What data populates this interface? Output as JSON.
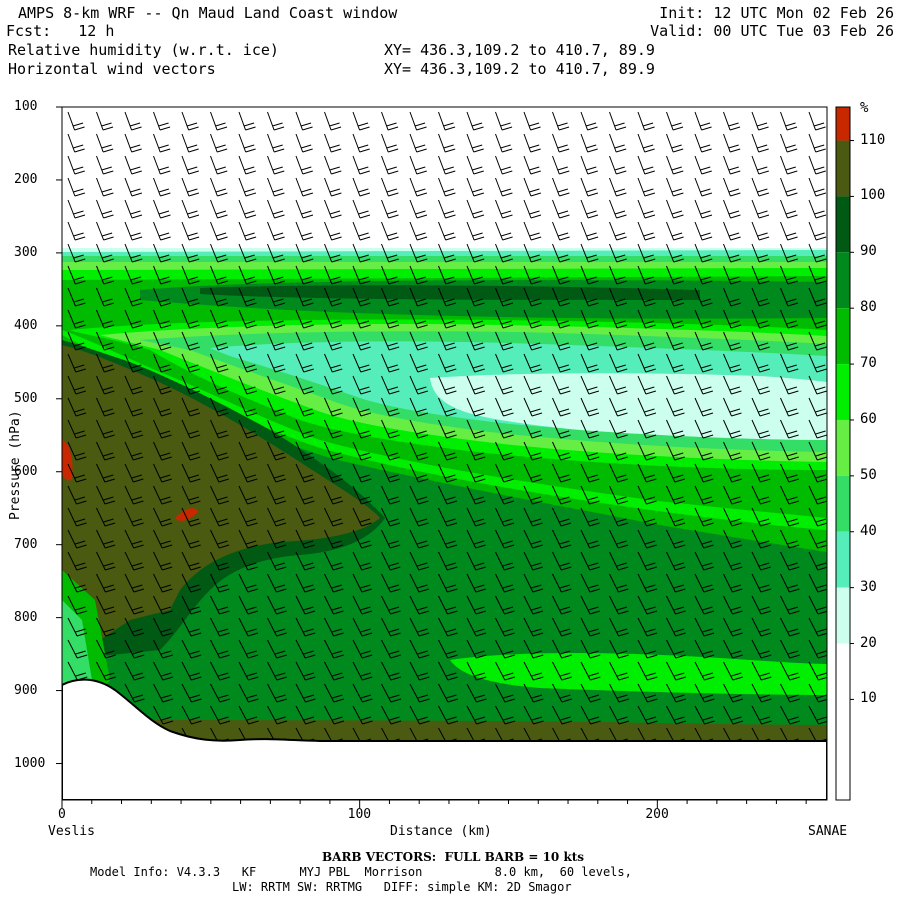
{
  "header": {
    "title": "AMPS 8-km WRF -- Qn Maud Land Coast window",
    "fcst": "Fcst:   12 h",
    "field1": "Relative humidity (w.r.t. ice)",
    "field2": "Horizontal wind vectors",
    "xy1": "XY= 436.3,109.2 to 410.7, 89.9",
    "xy2": "XY= 436.3,109.2 to 410.7, 89.9",
    "init": "Init: 12 UTC Mon 02 Feb 26",
    "valid": "Valid: 00 UTC Tue 03 Feb 26"
  },
  "chart_data": {
    "type": "heatmap",
    "title": "Relative humidity (w.r.t. ice) cross-section with wind barbs",
    "xlabel": "Distance (km)",
    "ylabel": "Pressure (hPa)",
    "xlim": [
      0,
      257
    ],
    "ylim": [
      1050,
      100
    ],
    "x_ticks": [
      0,
      100,
      200
    ],
    "y_ticks": [
      100,
      200,
      300,
      400,
      500,
      600,
      700,
      800,
      900,
      1000
    ],
    "x_left_label": "Veslis",
    "x_right_label": "SANAE",
    "colorbar": {
      "unit": "%",
      "levels": [
        10,
        20,
        30,
        40,
        50,
        60,
        70,
        80,
        90,
        100,
        110
      ],
      "colors": [
        "#ffffff",
        "#ffffff",
        "#ffffff",
        "#ccffee",
        "#55eebb",
        "#33dd66",
        "#66ee44",
        "#00ee00",
        "#00bb00",
        "#008a1e",
        "#005a14",
        "#4a5a10",
        "#c82800"
      ]
    },
    "barb_note": "BARB VECTORS:  FULL BARB = 10 kts"
  },
  "footer": {
    "line1": "Model Info: V4.3.3   KF      MYJ PBL  Morrison          8.0 km,  60 levels,",
    "line2": "LW: RRTM SW: RRTMG   DIFF: simple KM: 2D Smagor"
  }
}
